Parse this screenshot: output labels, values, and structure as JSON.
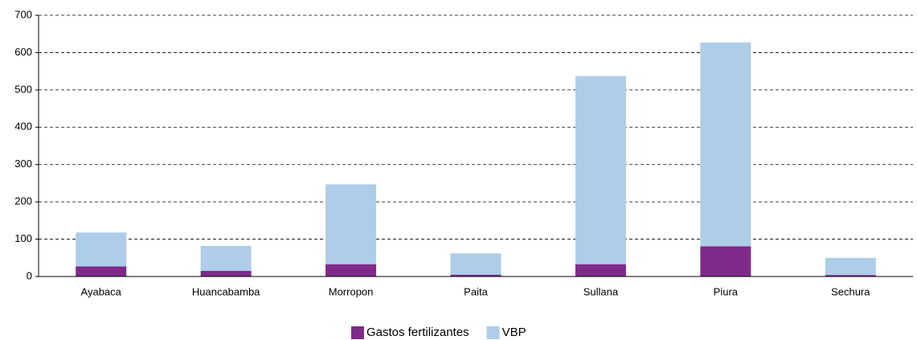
{
  "chart_data": {
    "type": "stacked_bar",
    "categories": [
      "Ayabaca",
      "Huancabamba",
      "Morropon",
      "Paita",
      "Sullana",
      "Piura",
      "Sechura"
    ],
    "series": [
      {
        "name": "Gastos fertilizantes",
        "color": "#7f2a8a",
        "values": [
          27,
          15,
          33,
          5,
          33,
          81,
          4
        ]
      },
      {
        "name": "VBP",
        "color": "#aecde9",
        "values": [
          91,
          67,
          214,
          57,
          504,
          546,
          46
        ]
      }
    ],
    "ylim": [
      0,
      700
    ],
    "yticks": [
      0,
      100,
      200,
      300,
      400,
      500,
      600,
      700
    ],
    "grid": true,
    "legend": "bottom"
  }
}
